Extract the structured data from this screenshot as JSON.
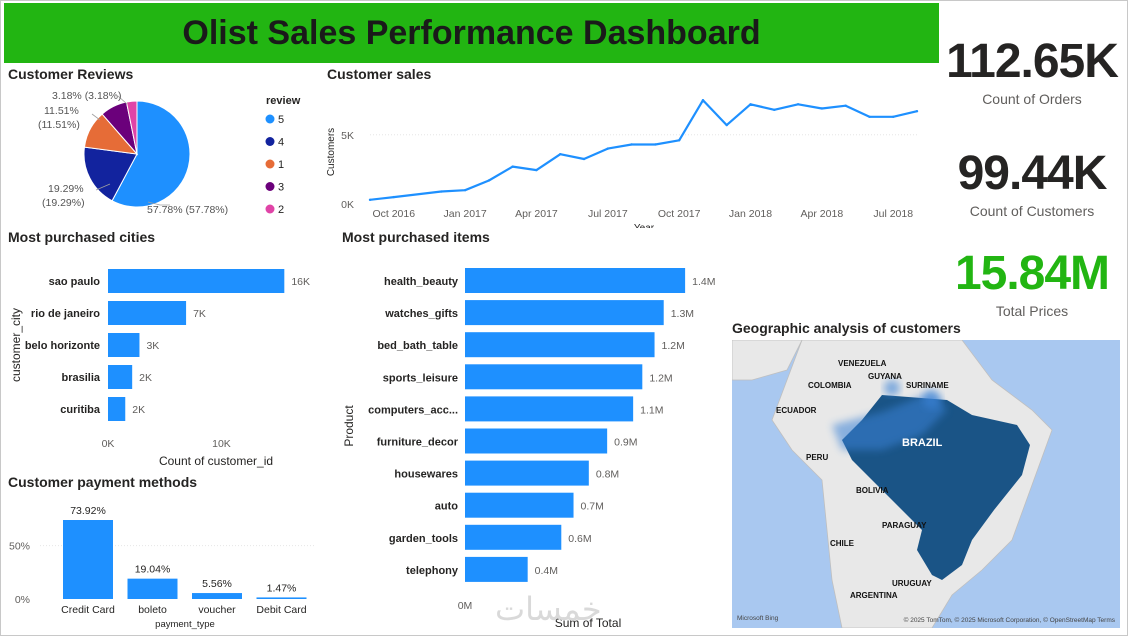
{
  "title": "Olist Sales Performance Dashboard",
  "kpis": [
    {
      "value": "112.65K",
      "label": "Count of Orders",
      "color": "#252423"
    },
    {
      "value": "99.44K",
      "label": "Count of Customers",
      "color": "#252423"
    },
    {
      "value": "15.84M",
      "label": "Total Prices",
      "color": "#22b512"
    }
  ],
  "watermark": "خمسات",
  "map": {
    "title": "Geographic analysis of customers",
    "labels": [
      "VENEZUELA",
      "GUYANA",
      "SURINAME",
      "COLOMBIA",
      "ECUADOR",
      "PERU",
      "BRAZIL",
      "BOLIVIA",
      "PARAGUAY",
      "CHILE",
      "URUGUAY",
      "ARGENTINA"
    ],
    "provider": "Microsoft Bing",
    "attribution": "© 2025 TomTom, © 2025 Microsoft Corporation, © OpenStreetMap  Terms",
    "colors": {
      "ocean": "#a9c8f0",
      "land": "#e8e8e8",
      "heat": "#0f4c81"
    }
  },
  "chart_data": [
    {
      "type": "pie",
      "title": "Customer Reviews",
      "legend_title": "review",
      "legend_position": "right",
      "slices": [
        {
          "name": "5",
          "value": 57.78,
          "label": "57.78% (57.78%)",
          "color": "#1e90ff"
        },
        {
          "name": "4",
          "value": 19.29,
          "label": "19.29%\n(19.29%)",
          "color": "#12239e"
        },
        {
          "name": "1",
          "value": 11.51,
          "label": "11.51%\n(11.51%)",
          "color": "#e66c37"
        },
        {
          "name": "3",
          "value": 8.24,
          "label": "",
          "color": "#6b007b"
        },
        {
          "name": "2",
          "value": 3.18,
          "label": "3.18% (3.18%)",
          "color": "#e044a7"
        }
      ]
    },
    {
      "type": "line",
      "title": "Customer sales",
      "xlabel": "Year",
      "ylabel": "Customers",
      "ylim": [
        0,
        7800
      ],
      "yticks": [
        {
          "v": 0,
          "label": "0K"
        },
        {
          "v": 5000,
          "label": "5K"
        }
      ],
      "xticks": [
        "Oct 2016",
        "Jan 2017",
        "Apr 2017",
        "Jul 2017",
        "Oct 2017",
        "Jan 2018",
        "Apr 2018",
        "Jul 2018"
      ],
      "x": [
        "2016-09",
        "2016-10",
        "2016-12",
        "2017-01",
        "2017-02",
        "2017-03",
        "2017-04",
        "2017-05",
        "2017-06",
        "2017-07",
        "2017-08",
        "2017-09",
        "2017-10",
        "2017-11",
        "2017-12",
        "2018-01",
        "2018-02",
        "2018-03",
        "2018-04",
        "2018-05",
        "2018-06",
        "2018-07",
        "2018-08"
      ],
      "values": [
        300,
        500,
        900,
        1000,
        1700,
        2700,
        2450,
        3600,
        3250,
        4000,
        4300,
        4300,
        4600,
        7500,
        5700,
        7200,
        6800,
        7200,
        6900,
        7100,
        6300,
        6300,
        6700
      ],
      "color": "#1e90ff"
    },
    {
      "type": "bar",
      "orientation": "horizontal",
      "title": "Most purchased cities",
      "xlabel": "Count of customer_id",
      "ylabel": "customer_city",
      "xlim": [
        0,
        15600
      ],
      "xticks": [
        {
          "v": 0,
          "label": "0K"
        },
        {
          "v": 10000,
          "label": "10K"
        }
      ],
      "categories": [
        "sao paulo",
        "rio de janeiro",
        "belo horizonte",
        "brasilia",
        "curitiba"
      ],
      "values": [
        15540,
        6882,
        2773,
        2131,
        1521
      ],
      "labels": [
        "16K",
        "7K",
        "3K",
        "2K",
        "2K"
      ],
      "color": "#1e90ff"
    },
    {
      "type": "bar",
      "orientation": "horizontal",
      "title": "Most purchased items",
      "xlabel": "Sum of Total",
      "ylabel": "Product",
      "xlim": [
        0,
        1400000
      ],
      "xticks": [
        {
          "v": 0,
          "label": "0M"
        }
      ],
      "categories": [
        "health_beauty",
        "watches_gifts",
        "bed_bath_table",
        "sports_leisure",
        "computers_acc...",
        "furniture_decor",
        "housewares",
        "auto",
        "garden_tools",
        "telephony"
      ],
      "values": [
        1440000,
        1300000,
        1240000,
        1160000,
        1100000,
        930000,
        810000,
        710000,
        630000,
        410000
      ],
      "labels": [
        "1.4M",
        "1.3M",
        "1.2M",
        "1.2M",
        "1.1M",
        "0.9M",
        "0.8M",
        "0.7M",
        "0.6M",
        "0.4M"
      ],
      "color": "#1e90ff"
    },
    {
      "type": "bar",
      "orientation": "vertical",
      "title": "Customer payment methods",
      "xlabel": "payment_type",
      "ylabel": "",
      "ylim": [
        0,
        75
      ],
      "yticks": [
        {
          "v": 0,
          "label": "0%"
        },
        {
          "v": 50,
          "label": "50%"
        }
      ],
      "categories": [
        "Credit Card",
        "boleto",
        "voucher",
        "Debit Card"
      ],
      "values": [
        73.92,
        19.04,
        5.56,
        1.47
      ],
      "labels": [
        "73.92%",
        "19.04%",
        "5.56%",
        "1.47%"
      ],
      "color": "#1e90ff"
    }
  ]
}
